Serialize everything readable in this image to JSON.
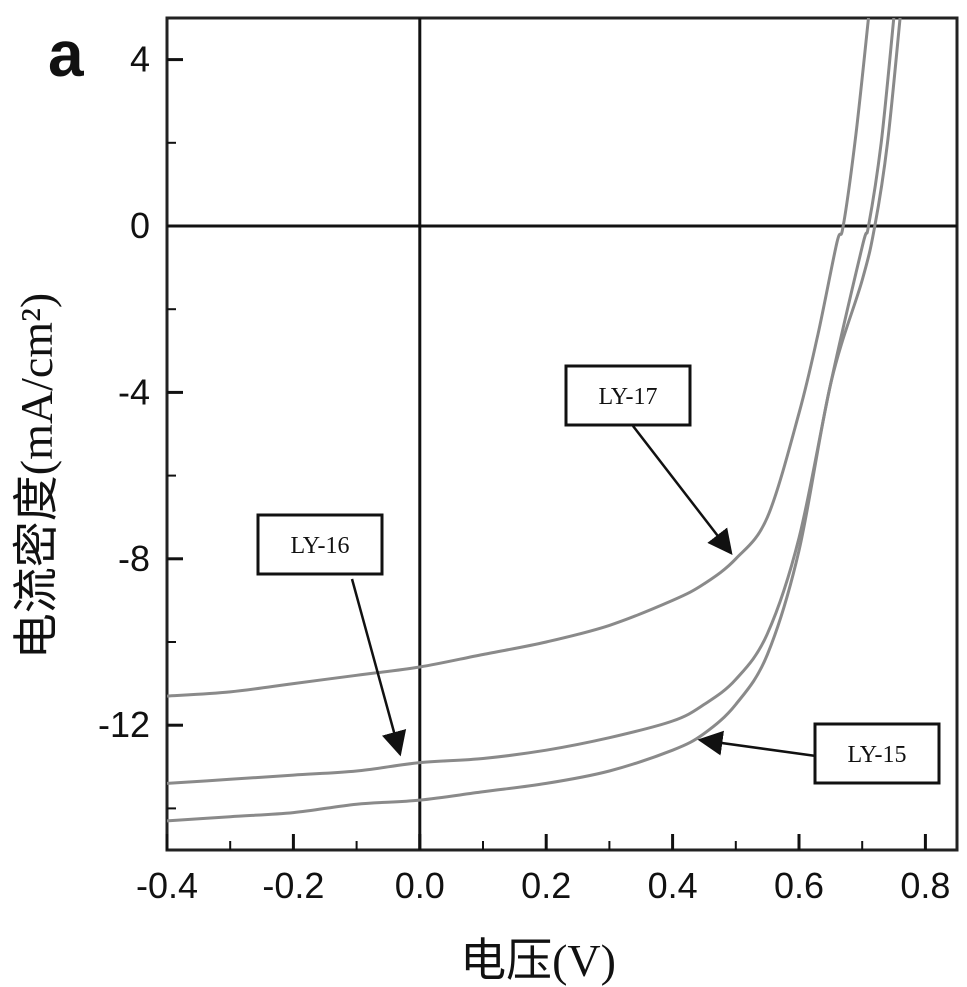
{
  "chart_data": {
    "type": "line",
    "panel_label": "a",
    "xlabel": "电压(V)",
    "ylabel": "电流密度(mA/cm²)",
    "xlim": [
      -0.4,
      0.85
    ],
    "ylim": [
      -15,
      5
    ],
    "xticks": [
      -0.4,
      -0.2,
      0.0,
      0.2,
      0.4,
      0.6,
      0.8
    ],
    "xtick_labels": [
      "-0.4",
      "-0.2",
      "0.0",
      "0.2",
      "0.4",
      "0.6",
      "0.8"
    ],
    "yticks": [
      4,
      0,
      -4,
      -8,
      -12
    ],
    "ytick_labels": [
      "4",
      "0",
      "-4",
      "-8",
      "-12"
    ],
    "reference_lines": {
      "x": 0,
      "y": 0
    },
    "grid": false,
    "series": [
      {
        "name": "LY-15",
        "x": [
          -0.4,
          -0.3,
          -0.2,
          -0.1,
          0.0,
          0.1,
          0.2,
          0.3,
          0.4,
          0.45,
          0.5,
          0.55,
          0.6,
          0.65,
          0.7,
          0.72,
          0.74,
          0.76
        ],
        "y": [
          -14.3,
          -14.2,
          -14.1,
          -13.9,
          -13.8,
          -13.6,
          -13.4,
          -13.1,
          -12.6,
          -12.2,
          -11.5,
          -10.3,
          -7.8,
          -3.8,
          -1.3,
          0.0,
          2.0,
          5.0
        ]
      },
      {
        "name": "LY-16",
        "x": [
          -0.4,
          -0.3,
          -0.2,
          -0.1,
          0.0,
          0.1,
          0.2,
          0.3,
          0.4,
          0.45,
          0.5,
          0.55,
          0.6,
          0.65,
          0.7,
          0.71,
          0.73,
          0.75
        ],
        "y": [
          -13.4,
          -13.3,
          -13.2,
          -13.1,
          -12.9,
          -12.8,
          -12.6,
          -12.3,
          -11.9,
          -11.5,
          -10.9,
          -9.8,
          -7.5,
          -3.8,
          -0.5,
          0.0,
          2.0,
          5.0
        ]
      },
      {
        "name": "LY-17",
        "x": [
          -0.4,
          -0.3,
          -0.2,
          -0.1,
          0.0,
          0.1,
          0.2,
          0.3,
          0.4,
          0.45,
          0.5,
          0.55,
          0.6,
          0.63,
          0.66,
          0.67,
          0.69,
          0.71
        ],
        "y": [
          -11.3,
          -11.2,
          -11.0,
          -10.8,
          -10.6,
          -10.3,
          -10.0,
          -9.6,
          -9.0,
          -8.6,
          -8.0,
          -7.0,
          -4.5,
          -2.6,
          -0.4,
          0.0,
          2.2,
          5.0
        ]
      }
    ],
    "annotations": [
      {
        "text": "LY-17",
        "target": "LY-17"
      },
      {
        "text": "LY-16",
        "target": "LY-16"
      },
      {
        "text": "LY-15",
        "target": "LY-15"
      }
    ]
  }
}
